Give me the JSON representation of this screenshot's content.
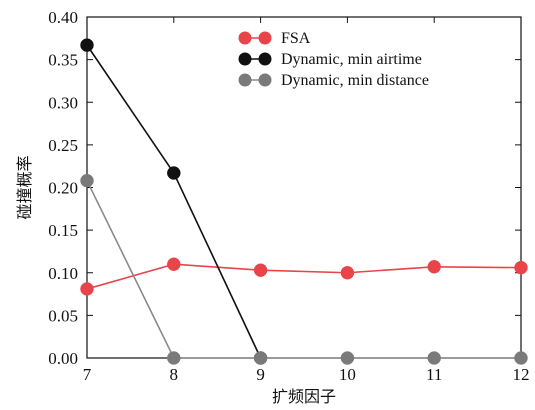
{
  "chart_data": {
    "type": "line",
    "title": "",
    "xlabel": "扩频因子",
    "ylabel": "碰撞概率",
    "xlim": [
      7,
      12
    ],
    "ylim": [
      0,
      0.4
    ],
    "xticks": [
      "7",
      "8",
      "9",
      "10",
      "11",
      "12"
    ],
    "yticks": [
      "0.00",
      "0.05",
      "0.10",
      "0.15",
      "0.20",
      "0.25",
      "0.30",
      "0.35",
      "0.40"
    ],
    "grid": false,
    "legend_position": "top-center",
    "series": [
      {
        "name": "FSA",
        "color": "#e8444a",
        "line_color": "#e8444a",
        "x": [
          7,
          8,
          9,
          10,
          11,
          12
        ],
        "y": [
          0.081,
          0.11,
          0.103,
          0.1,
          0.107,
          0.106
        ]
      },
      {
        "name": "Dynamic, min airtime",
        "color": "#111111",
        "line_color": "#111111",
        "x": [
          7,
          8,
          9
        ],
        "y": [
          0.367,
          0.217,
          0.0
        ]
      },
      {
        "name": "Dynamic, min distance",
        "color": "#7a7a7a",
        "line_color": "#8a8a8a",
        "x": [
          7,
          8,
          9,
          10,
          11,
          12
        ],
        "y": [
          0.208,
          0.0,
          0.0,
          0.0,
          0.0,
          0.0
        ]
      }
    ]
  }
}
